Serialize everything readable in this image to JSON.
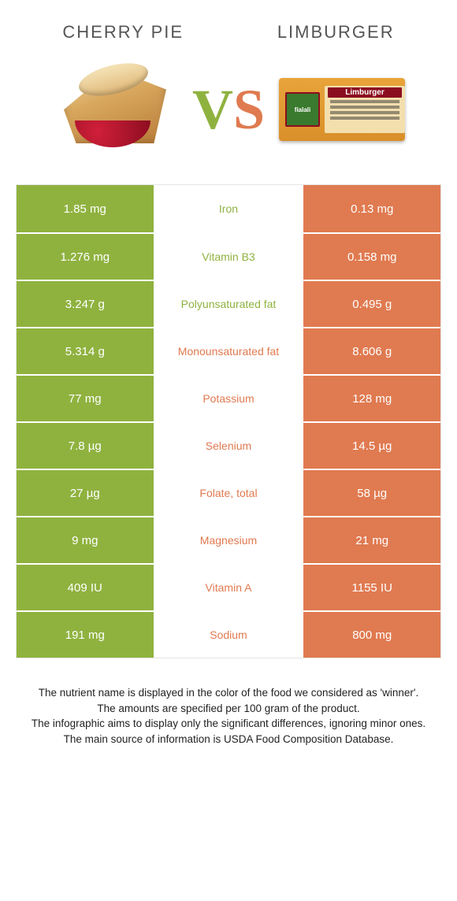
{
  "colors": {
    "left_food": "#8fb23f",
    "right_food": "#e07a50",
    "mid_label_fontsize": 14
  },
  "header": {
    "left_title": "Cherry pie",
    "right_title": "Limburger"
  },
  "vs": {
    "v_color": "#8fb23f",
    "s_color": "#e07a50"
  },
  "cheese": {
    "label": "fialali",
    "brand": "Limburger"
  },
  "rows": [
    {
      "left": "1.85 mg",
      "label": "Iron",
      "right": "0.13 mg",
      "winner": "left"
    },
    {
      "left": "1.276 mg",
      "label": "Vitamin B3",
      "right": "0.158 mg",
      "winner": "left"
    },
    {
      "left": "3.247 g",
      "label": "Polyunsaturated fat",
      "right": "0.495 g",
      "winner": "left"
    },
    {
      "left": "5.314 g",
      "label": "Monounsaturated fat",
      "right": "8.606 g",
      "winner": "right"
    },
    {
      "left": "77 mg",
      "label": "Potassium",
      "right": "128 mg",
      "winner": "right"
    },
    {
      "left": "7.8 µg",
      "label": "Selenium",
      "right": "14.5 µg",
      "winner": "right"
    },
    {
      "left": "27 µg",
      "label": "Folate, total",
      "right": "58 µg",
      "winner": "right"
    },
    {
      "left": "9 mg",
      "label": "Magnesium",
      "right": "21 mg",
      "winner": "right"
    },
    {
      "left": "409 IU",
      "label": "Vitamin A",
      "right": "1155 IU",
      "winner": "right"
    },
    {
      "left": "191 mg",
      "label": "Sodium",
      "right": "800 mg",
      "winner": "right"
    }
  ],
  "footnotes": [
    "The nutrient name is displayed in the color of the food we considered as 'winner'.",
    "The amounts are specified per 100 gram of the product.",
    "The infographic aims to display only the significant differences, ignoring minor ones.",
    "The main source of information is USDA Food Composition Database."
  ]
}
